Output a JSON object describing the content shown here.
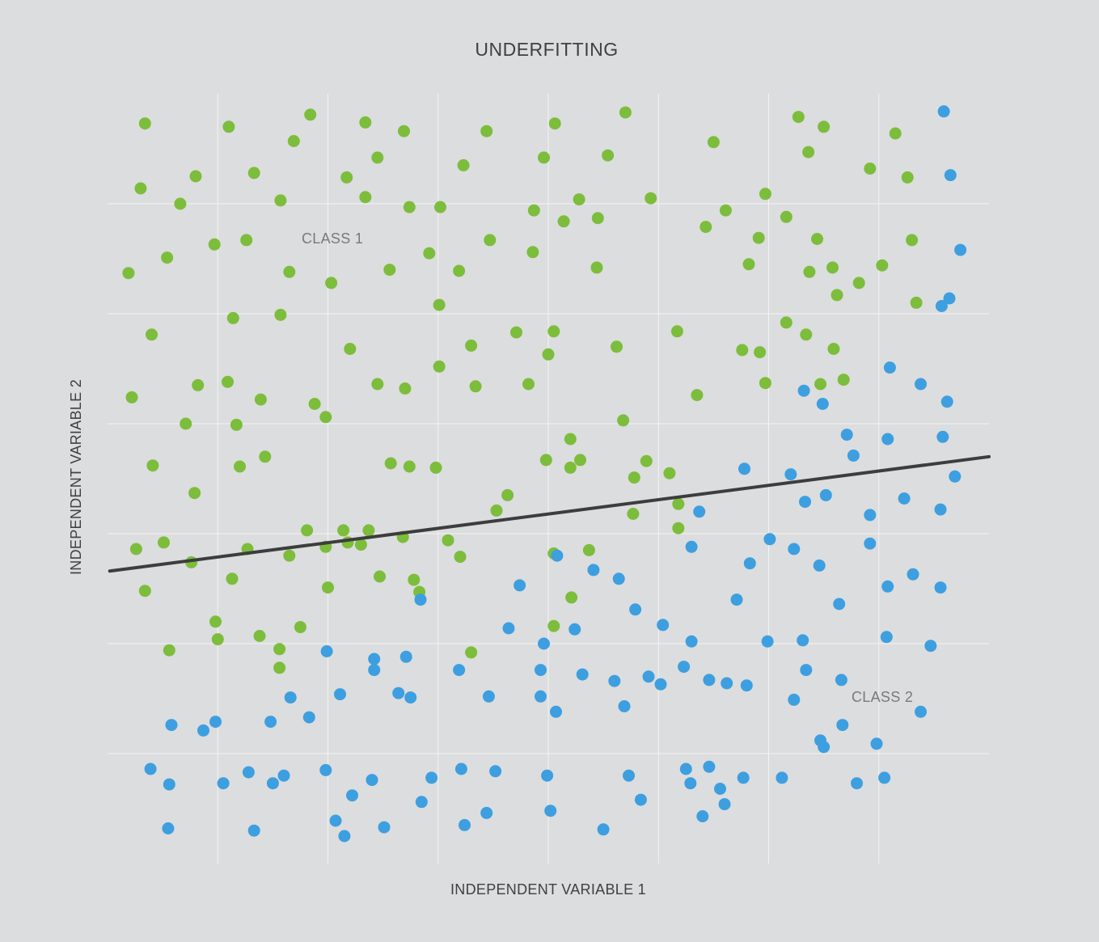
{
  "chart_data": {
    "type": "scatter",
    "title": "UNDERFITTING",
    "xlabel": "INDEPENDENT VARIABLE 1",
    "ylabel": "INDEPENDENT VARIABLE 2",
    "grid": true,
    "annotations": [
      {
        "id": "class1",
        "text": "CLASS 1",
        "x": 1.74,
        "y": 5.71
      },
      {
        "id": "class2",
        "text": "CLASS 2",
        "x": 7.0,
        "y": 1.54
      }
    ],
    "colors": {
      "class1": "#7cbd3c",
      "class2": "#3d9fe0",
      "decision_boundary": "#3d3d3d",
      "grid": "#f4f4f4",
      "background": "#dcddde"
    },
    "decision_boundary": {
      "x": [
        0.02,
        8.0
      ],
      "y": [
        2.66,
        3.7
      ]
    },
    "series": [
      {
        "id": "class1",
        "points": [
          [
            0.34,
            6.73
          ],
          [
            1.1,
            6.7
          ],
          [
            1.84,
            6.81
          ],
          [
            2.34,
            6.74
          ],
          [
            2.69,
            6.66
          ],
          [
            3.44,
            6.66
          ],
          [
            4.06,
            6.73
          ],
          [
            4.7,
            6.83
          ],
          [
            6.27,
            6.79
          ],
          [
            6.5,
            6.7
          ],
          [
            7.15,
            6.64
          ],
          [
            0.3,
            6.14
          ],
          [
            0.66,
            6.0
          ],
          [
            0.8,
            6.25
          ],
          [
            1.33,
            6.28
          ],
          [
            1.57,
            6.03
          ],
          [
            1.69,
            6.57
          ],
          [
            2.17,
            6.24
          ],
          [
            2.34,
            6.06
          ],
          [
            2.45,
            6.42
          ],
          [
            2.74,
            5.97
          ],
          [
            3.02,
            5.97
          ],
          [
            3.23,
            6.35
          ],
          [
            3.87,
            5.94
          ],
          [
            3.96,
            6.42
          ],
          [
            4.28,
            6.04
          ],
          [
            4.54,
            6.44
          ],
          [
            4.93,
            6.05
          ],
          [
            5.5,
            6.56
          ],
          [
            5.97,
            6.09
          ],
          [
            6.36,
            6.47
          ],
          [
            6.92,
            6.32
          ],
          [
            7.26,
            6.24
          ],
          [
            0.19,
            5.37
          ],
          [
            0.54,
            5.51
          ],
          [
            0.97,
            5.63
          ],
          [
            1.26,
            5.67
          ],
          [
            1.65,
            5.38
          ],
          [
            2.03,
            5.28
          ],
          [
            2.56,
            5.4
          ],
          [
            2.92,
            5.55
          ],
          [
            3.19,
            5.39
          ],
          [
            3.47,
            5.67
          ],
          [
            3.86,
            5.56
          ],
          [
            4.14,
            5.84
          ],
          [
            4.44,
            5.42
          ],
          [
            4.45,
            5.87
          ],
          [
            5.43,
            5.79
          ],
          [
            5.61,
            5.94
          ],
          [
            5.82,
            5.45
          ],
          [
            5.91,
            5.69
          ],
          [
            6.16,
            5.88
          ],
          [
            6.44,
            5.68
          ],
          [
            6.37,
            5.38
          ],
          [
            6.58,
            5.42
          ],
          [
            6.62,
            5.17
          ],
          [
            6.82,
            5.28
          ],
          [
            7.03,
            5.44
          ],
          [
            7.3,
            5.67
          ],
          [
            7.34,
            5.1
          ],
          [
            0.4,
            4.81
          ],
          [
            0.22,
            4.24
          ],
          [
            0.82,
            4.35
          ],
          [
            1.09,
            4.38
          ],
          [
            1.14,
            4.96
          ],
          [
            1.57,
            4.99
          ],
          [
            1.39,
            4.22
          ],
          [
            1.88,
            4.18
          ],
          [
            2.2,
            4.68
          ],
          [
            2.45,
            4.36
          ],
          [
            2.7,
            4.32
          ],
          [
            3.01,
            4.52
          ],
          [
            3.01,
            5.08
          ],
          [
            3.3,
            4.71
          ],
          [
            3.34,
            4.34
          ],
          [
            3.71,
            4.83
          ],
          [
            3.82,
            4.36
          ],
          [
            4.0,
            4.63
          ],
          [
            4.05,
            4.84
          ],
          [
            4.62,
            4.7
          ],
          [
            4.2,
            3.86
          ],
          [
            4.68,
            4.03
          ],
          [
            5.35,
            4.26
          ],
          [
            5.17,
            4.84
          ],
          [
            5.76,
            4.67
          ],
          [
            5.92,
            4.65
          ],
          [
            5.97,
            4.37
          ],
          [
            6.16,
            4.92
          ],
          [
            6.34,
            4.81
          ],
          [
            6.47,
            4.36
          ],
          [
            6.59,
            4.68
          ],
          [
            6.68,
            4.4
          ],
          [
            0.71,
            4.0
          ],
          [
            1.17,
            3.99
          ],
          [
            1.98,
            4.06
          ],
          [
            0.41,
            3.62
          ],
          [
            0.79,
            3.37
          ],
          [
            1.2,
            3.61
          ],
          [
            1.43,
            3.7
          ],
          [
            1.81,
            3.03
          ],
          [
            2.14,
            3.03
          ],
          [
            2.37,
            3.03
          ],
          [
            2.57,
            3.64
          ],
          [
            2.74,
            3.61
          ],
          [
            2.98,
            3.6
          ],
          [
            3.53,
            3.21
          ],
          [
            3.63,
            3.35
          ],
          [
            3.98,
            3.67
          ],
          [
            4.2,
            3.6
          ],
          [
            4.29,
            3.67
          ],
          [
            4.78,
            3.51
          ],
          [
            4.77,
            3.18
          ],
          [
            4.89,
            3.66
          ],
          [
            5.1,
            3.55
          ],
          [
            5.18,
            3.05
          ],
          [
            5.18,
            3.27
          ],
          [
            0.26,
            2.86
          ],
          [
            0.34,
            2.48
          ],
          [
            0.76,
            2.74
          ],
          [
            1.13,
            2.59
          ],
          [
            1.27,
            2.86
          ],
          [
            1.65,
            2.8
          ],
          [
            1.98,
            2.88
          ],
          [
            2.0,
            2.51
          ],
          [
            2.3,
            2.9
          ],
          [
            2.68,
            2.97
          ],
          [
            3.09,
            2.94
          ],
          [
            3.2,
            2.79
          ],
          [
            0.98,
            2.2
          ],
          [
            1.0,
            2.04
          ],
          [
            1.38,
            2.07
          ],
          [
            1.56,
            1.78
          ],
          [
            2.18,
            2.92
          ],
          [
            1.75,
            2.15
          ],
          [
            1.56,
            1.95
          ],
          [
            2.47,
            2.61
          ],
          [
            2.83,
            2.47
          ],
          [
            2.78,
            2.58
          ],
          [
            3.3,
            1.92
          ],
          [
            4.05,
            2.82
          ],
          [
            4.37,
            2.85
          ],
          [
            4.05,
            2.16
          ],
          [
            4.21,
            2.42
          ],
          [
            0.56,
            1.94
          ],
          [
            0.51,
            2.92
          ]
        ]
      },
      {
        "id": "class2",
        "points": [
          [
            7.59,
            6.84
          ],
          [
            7.65,
            6.26
          ],
          [
            7.74,
            5.58
          ],
          [
            7.57,
            5.07
          ],
          [
            7.64,
            5.14
          ],
          [
            7.1,
            4.51
          ],
          [
            7.38,
            4.36
          ],
          [
            7.62,
            4.2
          ],
          [
            6.49,
            4.18
          ],
          [
            6.32,
            4.3
          ],
          [
            6.71,
            3.9
          ],
          [
            7.08,
            3.86
          ],
          [
            7.58,
            3.88
          ],
          [
            6.2,
            3.54
          ],
          [
            5.78,
            3.59
          ],
          [
            6.33,
            3.29
          ],
          [
            6.77,
            3.71
          ],
          [
            7.23,
            3.32
          ],
          [
            7.69,
            3.52
          ],
          [
            6.01,
            2.95
          ],
          [
            6.52,
            3.35
          ],
          [
            6.92,
            3.17
          ],
          [
            7.56,
            3.22
          ],
          [
            5.37,
            3.2
          ],
          [
            5.3,
            2.88
          ],
          [
            5.83,
            2.73
          ],
          [
            6.23,
            2.86
          ],
          [
            6.46,
            2.71
          ],
          [
            6.92,
            2.91
          ],
          [
            7.08,
            2.52
          ],
          [
            7.56,
            2.51
          ],
          [
            7.31,
            2.63
          ],
          [
            4.08,
            2.8
          ],
          [
            4.41,
            2.67
          ],
          [
            4.64,
            2.59
          ],
          [
            3.74,
            2.53
          ],
          [
            2.84,
            2.4
          ],
          [
            3.64,
            2.14
          ],
          [
            3.96,
            2.0
          ],
          [
            4.24,
            2.13
          ],
          [
            4.79,
            2.31
          ],
          [
            5.04,
            2.17
          ],
          [
            5.3,
            2.02
          ],
          [
            5.71,
            2.4
          ],
          [
            5.99,
            2.02
          ],
          [
            6.31,
            2.03
          ],
          [
            6.64,
            2.36
          ],
          [
            7.07,
            2.06
          ],
          [
            7.47,
            1.98
          ],
          [
            1.99,
            1.93
          ],
          [
            2.42,
            1.86
          ],
          [
            2.71,
            1.88
          ],
          [
            2.42,
            1.76
          ],
          [
            3.19,
            1.76
          ],
          [
            3.93,
            1.76
          ],
          [
            4.31,
            1.72
          ],
          [
            4.6,
            1.66
          ],
          [
            4.91,
            1.7
          ],
          [
            5.23,
            1.79
          ],
          [
            5.46,
            1.67
          ],
          [
            5.8,
            1.62
          ],
          [
            6.34,
            1.76
          ],
          [
            6.66,
            1.67
          ],
          [
            2.11,
            1.54
          ],
          [
            1.66,
            1.51
          ],
          [
            2.75,
            1.51
          ],
          [
            3.46,
            1.52
          ],
          [
            3.93,
            1.52
          ],
          [
            4.07,
            1.38
          ],
          [
            4.69,
            1.43
          ],
          [
            5.02,
            1.63
          ],
          [
            5.62,
            1.64
          ],
          [
            6.23,
            1.49
          ],
          [
            6.67,
            1.26
          ],
          [
            7.38,
            1.38
          ],
          [
            1.83,
            1.33
          ],
          [
            2.64,
            1.55
          ],
          [
            0.98,
            1.29
          ],
          [
            1.48,
            1.29
          ],
          [
            0.58,
            1.26
          ],
          [
            0.87,
            1.21
          ],
          [
            1.28,
            0.83
          ],
          [
            1.6,
            0.8
          ],
          [
            1.98,
            0.85
          ],
          [
            2.4,
            0.76
          ],
          [
            2.94,
            0.78
          ],
          [
            3.21,
            0.86
          ],
          [
            3.52,
            0.84
          ],
          [
            3.99,
            0.8
          ],
          [
            4.73,
            0.8
          ],
          [
            5.25,
            0.86
          ],
          [
            5.46,
            0.88
          ],
          [
            5.77,
            0.78
          ],
          [
            6.47,
            1.12
          ],
          [
            6.5,
            1.06
          ],
          [
            6.98,
            1.09
          ],
          [
            7.05,
            0.78
          ],
          [
            5.56,
            0.68
          ],
          [
            5.29,
            0.73
          ],
          [
            0.39,
            0.86
          ],
          [
            0.56,
            0.72
          ],
          [
            1.05,
            0.73
          ],
          [
            1.5,
            0.73
          ],
          [
            2.22,
            0.62
          ],
          [
            2.85,
            0.56
          ],
          [
            3.44,
            0.46
          ],
          [
            4.02,
            0.48
          ],
          [
            4.84,
            0.58
          ],
          [
            5.6,
            0.54
          ],
          [
            6.12,
            0.78
          ],
          [
            6.8,
            0.73
          ],
          [
            0.55,
            0.32
          ],
          [
            1.33,
            0.3
          ],
          [
            2.07,
            0.39
          ],
          [
            2.51,
            0.33
          ],
          [
            3.24,
            0.35
          ],
          [
            4.5,
            0.31
          ],
          [
            5.4,
            0.43
          ],
          [
            2.15,
            0.25
          ]
        ]
      }
    ]
  }
}
